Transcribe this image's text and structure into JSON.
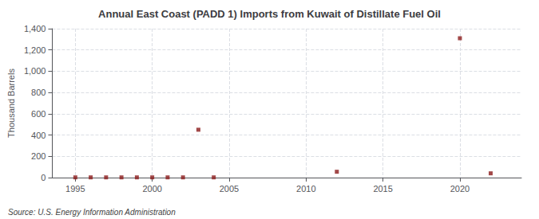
{
  "chart_data": {
    "type": "scatter",
    "title": "Annual East Coast (PADD 1) Imports from Kuwait of Distillate Fuel Oil",
    "ylabel": "Thousand Barrels",
    "annotations": [
      "Source: U.S. Energy Information Administration"
    ],
    "x": [
      1995,
      1996,
      1997,
      1998,
      1999,
      2000,
      2001,
      2002,
      2003,
      2004,
      2012,
      2020,
      2022
    ],
    "values": [
      2,
      2,
      2,
      2,
      2,
      2,
      2,
      2,
      450,
      2,
      55,
      1310,
      40
    ],
    "color": "#8b1a1a",
    "marker": "square",
    "xlim": [
      1993.5,
      2024
    ],
    "xticks": [
      1995,
      2000,
      2005,
      2010,
      2015,
      2020
    ],
    "ylim": [
      0,
      1400
    ],
    "yticks": [
      0,
      200,
      400,
      600,
      800,
      {
        "value": 1000,
        "label": "1,000"
      },
      {
        "value": 1200,
        "label": "1,200"
      },
      {
        "value": 1400,
        "label": "1,400"
      }
    ],
    "grid": true
  }
}
